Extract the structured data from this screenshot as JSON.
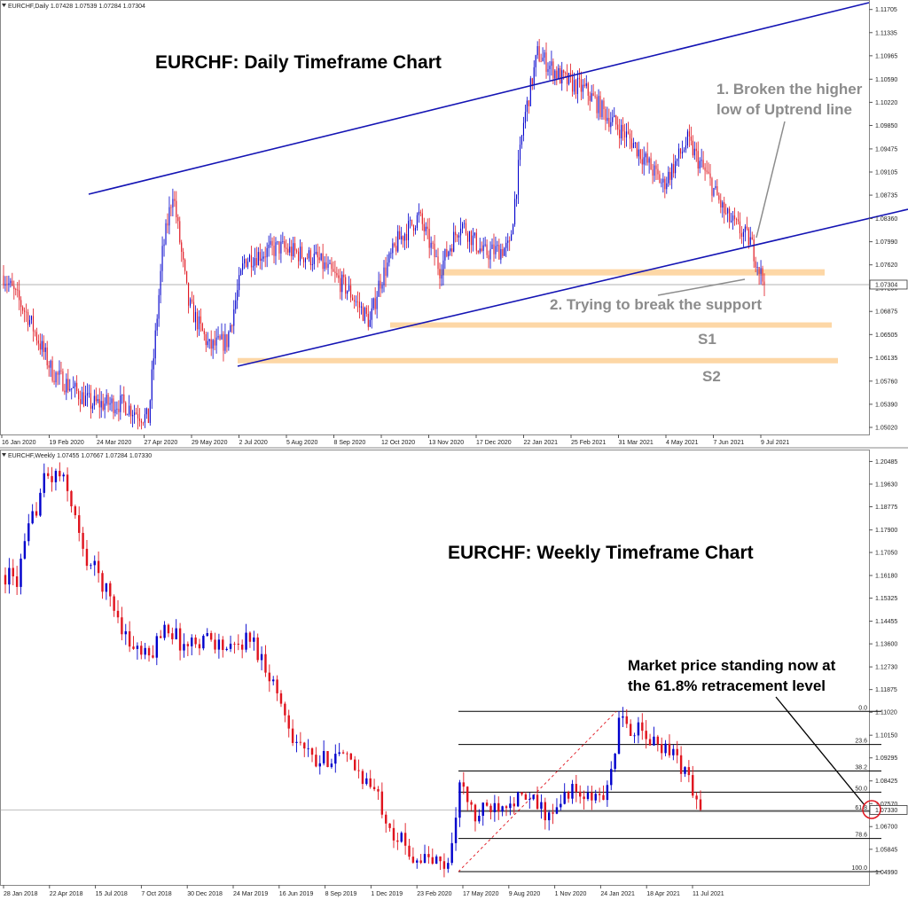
{
  "colors": {
    "bull": "#0000cc",
    "bear": "#e0141e",
    "trend": "#1414b4",
    "zone": "#fdd7a6",
    "fib": "#000000",
    "note": "#8c8c8c",
    "current": "#333333"
  },
  "chart_data": [
    {
      "type": "candlestick",
      "symbol_header": "EURCHF,Daily  1.07428 1.07539 1.07284 1.07304",
      "title": "EURCHF: Daily Timeframe Chart",
      "current_price_label": "1.07304",
      "ylim": [
        1.0502,
        1.118
      ],
      "price_labels": [
        "1.11705",
        "1.11335",
        "1.10965",
        "1.10590",
        "1.10220",
        "1.09850",
        "1.09475",
        "1.09105",
        "1.08735",
        "1.08360",
        "1.07990",
        "1.07620",
        "1.07250",
        "1.06875",
        "1.06505",
        "1.06135",
        "1.05760",
        "1.05390",
        "1.05020"
      ],
      "date_labels": [
        "16 Jan 2020",
        "19 Feb 2020",
        "24 Mar 2020",
        "27 Apr 2020",
        "29 May 2020",
        "2 Jul 2020",
        "5 Aug 2020",
        "8 Sep 2020",
        "12 Oct 2020",
        "13 Nov 2020",
        "17 Dec 2020",
        "22 Jan 2021",
        "25 Feb 2021",
        "31 Mar 2021",
        "4 May 2021",
        "7 Jun 2021",
        "9 Jul 2021"
      ],
      "annotations": [
        "1. Broken the higher low of Uptrend line",
        "2. Trying to break the support",
        "S1",
        "S2"
      ],
      "annotation_lines": {
        "a1_top": "1. Broken the higher",
        "a1_bottom": "low of Uptrend line",
        "a2": "2. Trying to break the support",
        "s1": "S1",
        "s2": "S2"
      },
      "zones": [
        {
          "name": "support",
          "low": 1.0745,
          "high": 1.0755
        },
        {
          "name": "S1",
          "low": 1.0662,
          "high": 1.067
        },
        {
          "name": "S2",
          "low": 1.0605,
          "high": 1.0613
        }
      ],
      "anchors": [
        {
          "t": 0,
          "p": 1.0745
        },
        {
          "t": 14,
          "p": 1.068
        },
        {
          "t": 28,
          "p": 1.059
        },
        {
          "t": 50,
          "p": 1.054
        },
        {
          "t": 68,
          "p": 1.054
        },
        {
          "t": 83,
          "p": 1.0515
        },
        {
          "t": 91,
          "p": 1.078
        },
        {
          "t": 97,
          "p": 1.088
        },
        {
          "t": 106,
          "p": 1.07
        },
        {
          "t": 118,
          "p": 1.063
        },
        {
          "t": 128,
          "p": 1.064
        },
        {
          "t": 138,
          "p": 1.077
        },
        {
          "t": 158,
          "p": 1.079
        },
        {
          "t": 180,
          "p": 1.077
        },
        {
          "t": 198,
          "p": 1.072
        },
        {
          "t": 210,
          "p": 1.067
        },
        {
          "t": 215,
          "p": 1.073
        },
        {
          "t": 226,
          "p": 1.08
        },
        {
          "t": 238,
          "p": 1.084
        },
        {
          "t": 250,
          "p": 1.0755
        },
        {
          "t": 262,
          "p": 1.083
        },
        {
          "t": 275,
          "p": 1.078
        },
        {
          "t": 290,
          "p": 1.079
        },
        {
          "t": 298,
          "p": 1.099
        },
        {
          "t": 306,
          "p": 1.11
        },
        {
          "t": 320,
          "p": 1.106
        },
        {
          "t": 334,
          "p": 1.104
        },
        {
          "t": 346,
          "p": 1.1
        },
        {
          "t": 360,
          "p": 1.096
        },
        {
          "t": 378,
          "p": 1.089
        },
        {
          "t": 392,
          "p": 1.096
        },
        {
          "t": 404,
          "p": 1.09
        },
        {
          "t": 414,
          "p": 1.084
        },
        {
          "t": 428,
          "p": 1.08
        },
        {
          "t": 436,
          "p": 1.073
        }
      ]
    },
    {
      "type": "candlestick",
      "symbol_header": "EURCHF,Weekly  1.07455 1.07667 1.07284 1.07330",
      "title": "EURCHF: Weekly Timeframe Chart",
      "current_price_label": "1.07330",
      "ylim": [
        1.048,
        1.206
      ],
      "price_labels": [
        "1.20485",
        "1.19630",
        "1.18775",
        "1.17900",
        "1.17050",
        "1.16180",
        "1.15325",
        "1.14455",
        "1.13600",
        "1.12730",
        "1.11875",
        "1.11020",
        "1.10150",
        "1.09295",
        "1.08425",
        "1.07570",
        "1.07330",
        "1.06700",
        "1.05845",
        "1.04990"
      ],
      "date_labels": [
        "28 Jan 2018",
        "22 Apr 2018",
        "15 Jul 2018",
        "7 Oct 2018",
        "30 Dec 2018",
        "24 Mar 2019",
        "16 Jun 2019",
        "8 Sep 2019",
        "1 Dec 2019",
        "23 Feb 2020",
        "17 May 2020",
        "9 Aug 2020",
        "1 Nov 2020",
        "24 Jan 2021",
        "18 Apr 2021",
        "11 Jul 2021"
      ],
      "annotations": [
        "Market price standing now at the 61.8% retracement level"
      ],
      "annotation_lines": {
        "top": "Market price standing now at",
        "bottom": "the 61.8% retracement level"
      },
      "fib_levels": [
        {
          "label": "0.0",
          "price": 1.1105
        },
        {
          "label": "23.6",
          "price": 1.098
        },
        {
          "label": "38.2",
          "price": 1.088
        },
        {
          "label": "50.0",
          "price": 1.08
        },
        {
          "label": "61.8",
          "price": 1.0728
        },
        {
          "label": "78.6",
          "price": 1.0625
        },
        {
          "label": "100.0",
          "price": 1.05
        }
      ],
      "anchors": [
        {
          "t": 0,
          "p": 1.162
        },
        {
          "t": 3,
          "p": 1.16
        },
        {
          "t": 6,
          "p": 1.178
        },
        {
          "t": 10,
          "p": 1.198
        },
        {
          "t": 14,
          "p": 1.2
        },
        {
          "t": 17,
          "p": 1.19
        },
        {
          "t": 20,
          "p": 1.17
        },
        {
          "t": 24,
          "p": 1.162
        },
        {
          "t": 28,
          "p": 1.15
        },
        {
          "t": 32,
          "p": 1.136
        },
        {
          "t": 37,
          "p": 1.13
        },
        {
          "t": 41,
          "p": 1.144
        },
        {
          "t": 46,
          "p": 1.135
        },
        {
          "t": 52,
          "p": 1.139
        },
        {
          "t": 58,
          "p": 1.133
        },
        {
          "t": 63,
          "p": 1.139
        },
        {
          "t": 68,
          "p": 1.125
        },
        {
          "t": 74,
          "p": 1.102
        },
        {
          "t": 80,
          "p": 1.09
        },
        {
          "t": 85,
          "p": 1.095
        },
        {
          "t": 91,
          "p": 1.088
        },
        {
          "t": 96,
          "p": 1.078
        },
        {
          "t": 100,
          "p": 1.065
        },
        {
          "t": 105,
          "p": 1.056
        },
        {
          "t": 110,
          "p": 1.054
        },
        {
          "t": 114,
          "p": 1.052
        },
        {
          "t": 117,
          "p": 1.083
        },
        {
          "t": 121,
          "p": 1.07
        },
        {
          "t": 124,
          "p": 1.074
        },
        {
          "t": 130,
          "p": 1.078
        },
        {
          "t": 136,
          "p": 1.076
        },
        {
          "t": 141,
          "p": 1.07
        },
        {
          "t": 145,
          "p": 1.081
        },
        {
          "t": 150,
          "p": 1.077
        },
        {
          "t": 155,
          "p": 1.08
        },
        {
          "t": 158,
          "p": 1.106
        },
        {
          "t": 162,
          "p": 1.104
        },
        {
          "t": 166,
          "p": 1.099
        },
        {
          "t": 171,
          "p": 1.097
        },
        {
          "t": 175,
          "p": 1.088
        },
        {
          "t": 179,
          "p": 1.0733
        }
      ]
    }
  ]
}
